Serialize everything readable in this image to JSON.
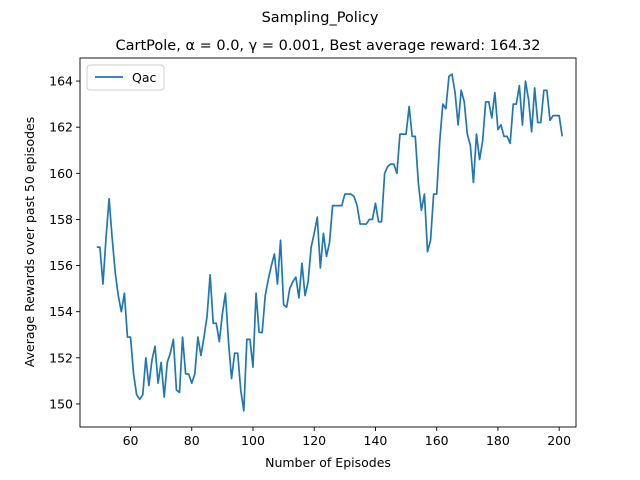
{
  "chart_data": {
    "type": "line",
    "suptitle": "Sampling_Policy",
    "title": "CartPole, α = 0.0, γ = 0.001,  Best average reward: 164.32",
    "xlabel": "Number of Episodes",
    "ylabel": "Average Rewards over past 50 episodes",
    "xlim": [
      43.5,
      205.5
    ],
    "ylim": [
      149.0,
      165.0
    ],
    "xticks": [
      60,
      80,
      100,
      120,
      140,
      160,
      180,
      200
    ],
    "yticks": [
      150,
      152,
      154,
      156,
      158,
      160,
      162,
      164
    ],
    "grid": false,
    "legend": {
      "placement": "top-left"
    },
    "series": [
      {
        "name": "Qac",
        "color": "#1f77b4",
        "x_start": 49,
        "x_step": 1,
        "values": [
          156.8,
          156.8,
          155.2,
          157.2,
          158.9,
          157.2,
          155.7,
          154.7,
          154.0,
          154.8,
          152.9,
          152.9,
          151.3,
          150.4,
          150.2,
          150.4,
          152.0,
          150.8,
          151.9,
          152.5,
          150.9,
          151.8,
          150.3,
          151.8,
          152.2,
          152.8,
          150.6,
          150.5,
          152.9,
          151.3,
          151.3,
          150.9,
          151.3,
          152.9,
          152.1,
          152.9,
          153.8,
          155.6,
          153.5,
          153.5,
          152.7,
          153.9,
          154.8,
          152.7,
          151.1,
          152.2,
          152.2,
          150.6,
          149.7,
          152.8,
          152.8,
          151.6,
          154.8,
          153.1,
          153.1,
          154.7,
          155.4,
          156.0,
          156.5,
          155.2,
          157.1,
          154.3,
          154.2,
          155.0,
          155.3,
          155.5,
          154.6,
          156.1,
          154.7,
          155.3,
          156.8,
          157.4,
          158.1,
          155.9,
          157.4,
          156.4,
          157.0,
          158.6,
          158.6,
          158.6,
          158.6,
          159.1,
          159.1,
          159.1,
          159.0,
          158.6,
          157.8,
          157.8,
          157.8,
          158.0,
          158.0,
          158.7,
          157.9,
          157.9,
          160.0,
          160.3,
          160.4,
          160.4,
          160.0,
          161.7,
          161.7,
          161.7,
          162.9,
          161.6,
          161.6,
          159.6,
          158.4,
          159.1,
          156.6,
          157.1,
          159.1,
          159.1,
          161.4,
          163.0,
          162.8,
          164.2,
          164.3,
          163.5,
          162.1,
          163.6,
          163.1,
          161.7,
          161.2,
          159.6,
          161.7,
          160.6,
          161.4,
          163.1,
          163.1,
          162.4,
          163.5,
          161.9,
          162.1,
          161.6,
          161.6,
          161.3,
          163.0,
          163.0,
          163.8,
          162.1,
          164.0,
          163.2,
          161.8,
          163.7,
          162.2,
          162.2,
          163.6,
          163.6,
          162.3,
          162.5,
          162.5,
          162.5,
          161.6
        ]
      }
    ]
  }
}
